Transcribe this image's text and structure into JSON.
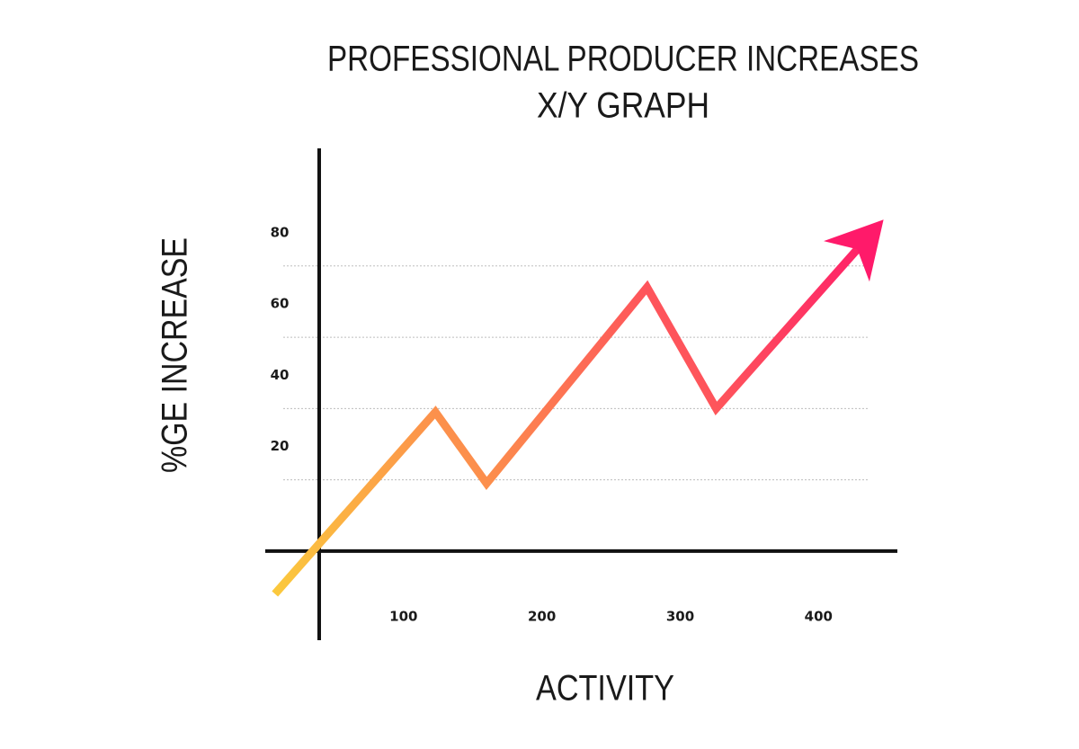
{
  "chart_data": {
    "type": "line",
    "title": "PROFESSIONAL PRODUCER INCREASES",
    "subtitle": "X/Y GRAPH",
    "x_label": "ACTIVITY",
    "y_label": "%GE INCREASE",
    "x": [
      7,
      123,
      160,
      276,
      326,
      447
    ],
    "values": [
      -12,
      39,
      19,
      74,
      40,
      93
    ],
    "color_start": "#fbc93d",
    "color_end": "#ff1a6a",
    "xlim": [
      0,
      457
    ],
    "xticks": [
      100,
      200,
      300,
      400
    ],
    "ylim": [
      -25,
      113
    ],
    "yticks": [
      20,
      40,
      60,
      80
    ],
    "grid": true
  }
}
